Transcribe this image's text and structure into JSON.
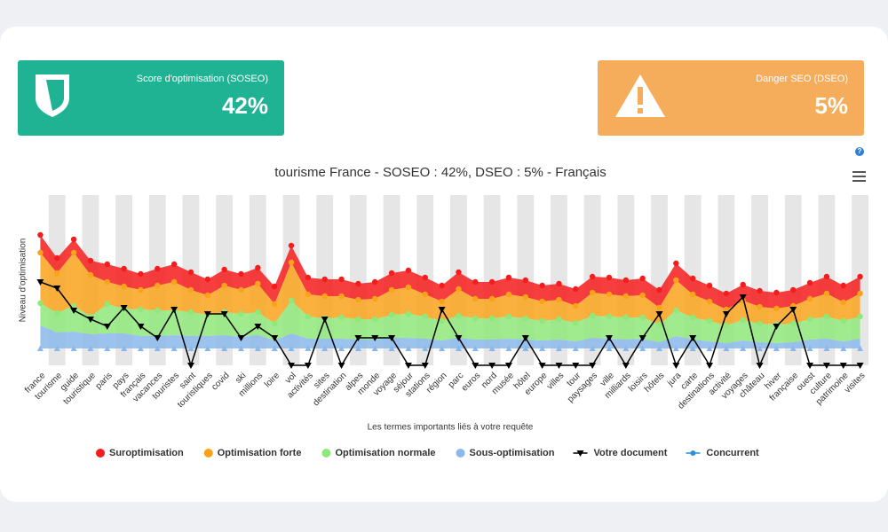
{
  "cards": [
    {
      "label": "Score d'optimisation (SOSEO)",
      "value": "42%"
    },
    {
      "label": "Danger SEO (DSEO)",
      "value": "5%"
    }
  ],
  "chart_data": {
    "type": "arearange-stack",
    "title": "tourisme France - SOSEO : 42%, DSEO : 5% - Français",
    "y_label": "Niveau d'optimisation",
    "x_label": "Les termes importants liés à votre requête",
    "categories": [
      "france",
      "tourisme",
      "guide",
      "touristique",
      "paris",
      "pays",
      "français",
      "vacances",
      "touristes",
      "saint",
      "touristiques",
      "covid",
      "ski",
      "millions",
      "loire",
      "vol",
      "activités",
      "sites",
      "destination",
      "alpes",
      "monde",
      "voyage",
      "séjour",
      "stations",
      "région",
      "parc",
      "euros",
      "nord",
      "musée",
      "hôtel",
      "europe",
      "villes",
      "tour",
      "paysages",
      "ville",
      "milliards",
      "loisirs",
      "hôtels",
      "jura",
      "carte",
      "destinations",
      "activité",
      "voyages",
      "château",
      "hiver",
      "française",
      "ouest",
      "culture",
      "patrimoine",
      "visites"
    ],
    "ylim": [
      0,
      192
    ],
    "series": [
      {
        "name": "Suroptimisation",
        "color": "#f41c1c",
        "values": [
          147,
          121,
          142,
          118,
          114,
          109,
          103,
          109,
          114,
          105,
          97,
          108,
          103,
          110,
          89,
          135,
          99,
          97,
          97,
          92,
          94,
          104,
          107,
          99,
          90,
          105,
          94,
          94,
          99,
          96,
          90,
          92,
          86,
          100,
          99,
          96,
          98,
          85,
          115,
          98,
          90,
          81,
          91,
          84,
          82,
          85,
          93,
          100,
          90,
          100
        ]
      },
      {
        "name": "Optimisation forte",
        "color": "#f9a31b",
        "values": [
          127,
          104,
          127,
          102,
          94,
          89,
          85,
          90,
          94,
          85,
          79,
          90,
          85,
          92,
          69,
          116,
          80,
          78,
          78,
          74,
          75,
          85,
          88,
          80,
          72,
          86,
          75,
          75,
          80,
          77,
          72,
          74,
          67,
          82,
          80,
          78,
          79,
          65,
          96,
          80,
          72,
          63,
          73,
          66,
          64,
          67,
          75,
          81,
          71,
          81
        ]
      },
      {
        "name": "Optimisation normale",
        "color": "#8ee87a",
        "values": [
          70,
          59,
          67,
          55,
          69,
          64,
          63,
          62,
          62,
          60,
          57,
          60,
          58,
          60,
          47,
          73,
          55,
          53,
          54,
          52,
          52,
          57,
          58,
          55,
          50,
          56,
          53,
          53,
          55,
          53,
          50,
          52,
          48,
          56,
          55,
          54,
          54,
          46,
          62,
          54,
          50,
          45,
          51,
          47,
          46,
          47,
          52,
          55,
          50,
          55
        ]
      },
      {
        "name": "Sous-optimisation",
        "color": "#8ab8ea",
        "values": [
          45,
          37,
          38,
          35,
          36,
          36,
          33,
          33,
          34,
          33,
          33,
          34,
          32,
          34,
          28,
          36,
          30,
          30,
          30,
          29,
          29,
          31,
          31,
          30,
          28,
          31,
          29,
          29,
          30,
          29,
          28,
          29,
          27,
          31,
          30,
          29,
          30,
          26,
          33,
          29,
          27,
          25,
          28,
          26,
          25,
          26,
          29,
          30,
          27,
          30
        ],
        "low": [
          19,
          19,
          19,
          19,
          19,
          19,
          19,
          19,
          19,
          19,
          19,
          19,
          19,
          19,
          19,
          19,
          19,
          19,
          19,
          19,
          19,
          19,
          19,
          19,
          19,
          19,
          19,
          19,
          19,
          19,
          19,
          19,
          19,
          19,
          19,
          19,
          19,
          19,
          19,
          19,
          19,
          19,
          19,
          19,
          19,
          19,
          19,
          19,
          19,
          19
        ]
      },
      {
        "name": "Votre document",
        "color": "#000000",
        "line": true,
        "values": [
          94,
          87,
          62,
          52,
          44,
          65,
          44,
          31,
          63,
          0,
          58,
          58,
          31,
          44,
          31,
          0,
          0,
          52,
          0,
          31,
          31,
          31,
          0,
          0,
          63,
          31,
          0,
          0,
          0,
          31,
          0,
          0,
          0,
          0,
          31,
          0,
          31,
          58,
          0,
          31,
          0,
          58,
          77,
          0,
          44,
          63,
          0,
          0,
          0,
          0
        ]
      },
      {
        "name": "Concurrent",
        "color": "#2f8fd6",
        "line": true
      }
    ]
  }
}
